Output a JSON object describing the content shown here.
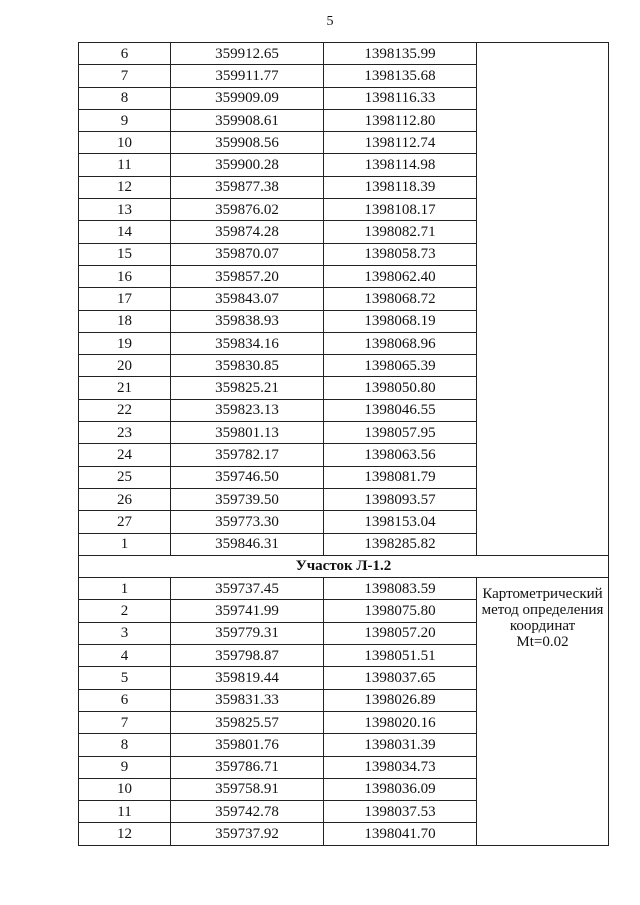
{
  "page_number": "5",
  "table": {
    "block1_rows": [
      [
        "6",
        "359912.65",
        "1398135.99"
      ],
      [
        "7",
        "359911.77",
        "1398135.68"
      ],
      [
        "8",
        "359909.09",
        "1398116.33"
      ],
      [
        "9",
        "359908.61",
        "1398112.80"
      ],
      [
        "10",
        "359908.56",
        "1398112.74"
      ],
      [
        "11",
        "359900.28",
        "1398114.98"
      ],
      [
        "12",
        "359877.38",
        "1398118.39"
      ],
      [
        "13",
        "359876.02",
        "1398108.17"
      ],
      [
        "14",
        "359874.28",
        "1398082.71"
      ],
      [
        "15",
        "359870.07",
        "1398058.73"
      ],
      [
        "16",
        "359857.20",
        "1398062.40"
      ],
      [
        "17",
        "359843.07",
        "1398068.72"
      ],
      [
        "18",
        "359838.93",
        "1398068.19"
      ],
      [
        "19",
        "359834.16",
        "1398068.96"
      ],
      [
        "20",
        "359830.85",
        "1398065.39"
      ],
      [
        "21",
        "359825.21",
        "1398050.80"
      ],
      [
        "22",
        "359823.13",
        "1398046.55"
      ],
      [
        "23",
        "359801.13",
        "1398057.95"
      ],
      [
        "24",
        "359782.17",
        "1398063.56"
      ],
      [
        "25",
        "359746.50",
        "1398081.79"
      ],
      [
        "26",
        "359739.50",
        "1398093.57"
      ],
      [
        "27",
        "359773.30",
        "1398153.04"
      ],
      [
        "1",
        "359846.31",
        "1398285.82"
      ]
    ],
    "section_title": "Участок Л-1.2",
    "block2_rows": [
      [
        "1",
        "359737.45",
        "1398083.59"
      ],
      [
        "2",
        "359741.99",
        "1398075.80"
      ],
      [
        "3",
        "359779.31",
        "1398057.20"
      ],
      [
        "4",
        "359798.87",
        "1398051.51"
      ],
      [
        "5",
        "359819.44",
        "1398037.65"
      ],
      [
        "6",
        "359831.33",
        "1398026.89"
      ],
      [
        "7",
        "359825.57",
        "1398020.16"
      ],
      [
        "8",
        "359801.76",
        "1398031.39"
      ],
      [
        "9",
        "359786.71",
        "1398034.73"
      ],
      [
        "10",
        "359758.91",
        "1398036.09"
      ],
      [
        "11",
        "359742.78",
        "1398037.53"
      ],
      [
        "12",
        "359737.92",
        "1398041.70"
      ]
    ],
    "method_note": {
      "line1": "Картометрический",
      "line2": "метод определения",
      "line3": "координат",
      "line4": "Mt=0.02"
    }
  }
}
